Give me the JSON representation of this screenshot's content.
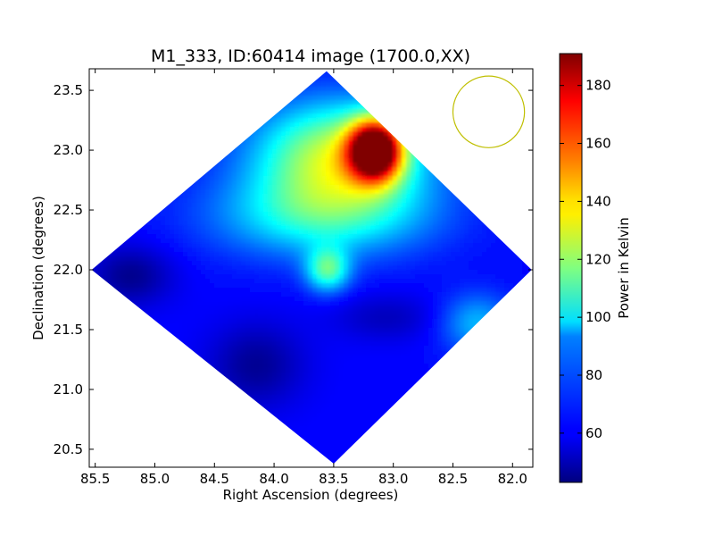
{
  "chart_data": {
    "type": "heatmap",
    "title": "M1_333, ID:60414 image (1700.0,XX)",
    "xlabel": "Right Ascension (degrees)",
    "ylabel": "Declination (degrees)",
    "xlim": [
      85.55,
      81.83
    ],
    "ylim": [
      20.35,
      23.68
    ],
    "x_ticks": [
      {
        "value": 85.5,
        "label": "85.5"
      },
      {
        "value": 85.0,
        "label": "85.0"
      },
      {
        "value": 84.5,
        "label": "84.5"
      },
      {
        "value": 84.0,
        "label": "84.0"
      },
      {
        "value": 83.5,
        "label": "83.5"
      },
      {
        "value": 83.0,
        "label": "83.0"
      },
      {
        "value": 82.5,
        "label": "82.5"
      },
      {
        "value": 82.0,
        "label": "82.0"
      }
    ],
    "y_ticks": [
      {
        "value": 20.5,
        "label": "20.5"
      },
      {
        "value": 21.0,
        "label": "21.0"
      },
      {
        "value": 21.5,
        "label": "21.5"
      },
      {
        "value": 22.0,
        "label": "22.0"
      },
      {
        "value": 22.5,
        "label": "22.5"
      },
      {
        "value": 23.0,
        "label": "23.0"
      },
      {
        "value": 23.5,
        "label": "23.5"
      }
    ],
    "colorbar": {
      "label": "Power in Kelvin",
      "range": [
        43,
        191
      ],
      "colormap": "jet",
      "ticks": [
        {
          "value": 60,
          "label": "60"
        },
        {
          "value": 80,
          "label": "80"
        },
        {
          "value": 100,
          "label": "100"
        },
        {
          "value": 120,
          "label": "120"
        },
        {
          "value": 140,
          "label": "140"
        },
        {
          "value": 160,
          "label": "160"
        },
        {
          "value": 180,
          "label": "180"
        }
      ]
    },
    "footprint_diamond": [
      {
        "ra": 83.56,
        "dec": 23.66
      },
      {
        "ra": 81.84,
        "dec": 22.0
      },
      {
        "ra": 83.5,
        "dec": 20.38
      },
      {
        "ra": 85.53,
        "dec": 22.0
      }
    ],
    "background_power": 62,
    "features": [
      {
        "kind": "peak",
        "ra": 83.15,
        "dec": 23.0,
        "power": 188,
        "spread_ra": 0.22,
        "spread_dec": 0.25
      },
      {
        "kind": "warm-region",
        "ra": 83.45,
        "dec": 22.95,
        "power": 128,
        "spread_ra": 0.7,
        "spread_dec": 0.45
      },
      {
        "kind": "warm-region",
        "ra": 83.6,
        "dec": 22.45,
        "power": 98,
        "spread_ra": 0.9,
        "spread_dec": 0.35
      },
      {
        "kind": "local-peak",
        "ra": 83.55,
        "dec": 22.0,
        "power": 108,
        "spread_ra": 0.18,
        "spread_dec": 0.18
      },
      {
        "kind": "warm-region",
        "ra": 82.3,
        "dec": 21.55,
        "power": 88,
        "spread_ra": 0.3,
        "spread_dec": 0.25
      },
      {
        "kind": "cold-region",
        "ra": 85.2,
        "dec": 21.95,
        "power": 45,
        "spread_ra": 0.35,
        "spread_dec": 0.25
      },
      {
        "kind": "cold-region",
        "ra": 84.15,
        "dec": 21.2,
        "power": 46,
        "spread_ra": 0.4,
        "spread_dec": 0.35
      },
      {
        "kind": "cold-region",
        "ra": 83.05,
        "dec": 21.6,
        "power": 52,
        "spread_ra": 0.45,
        "spread_dec": 0.2
      }
    ],
    "beam_circle": {
      "ra": 82.2,
      "dec": 23.32,
      "radius_deg": 0.3,
      "color": "#bfbf00"
    }
  }
}
